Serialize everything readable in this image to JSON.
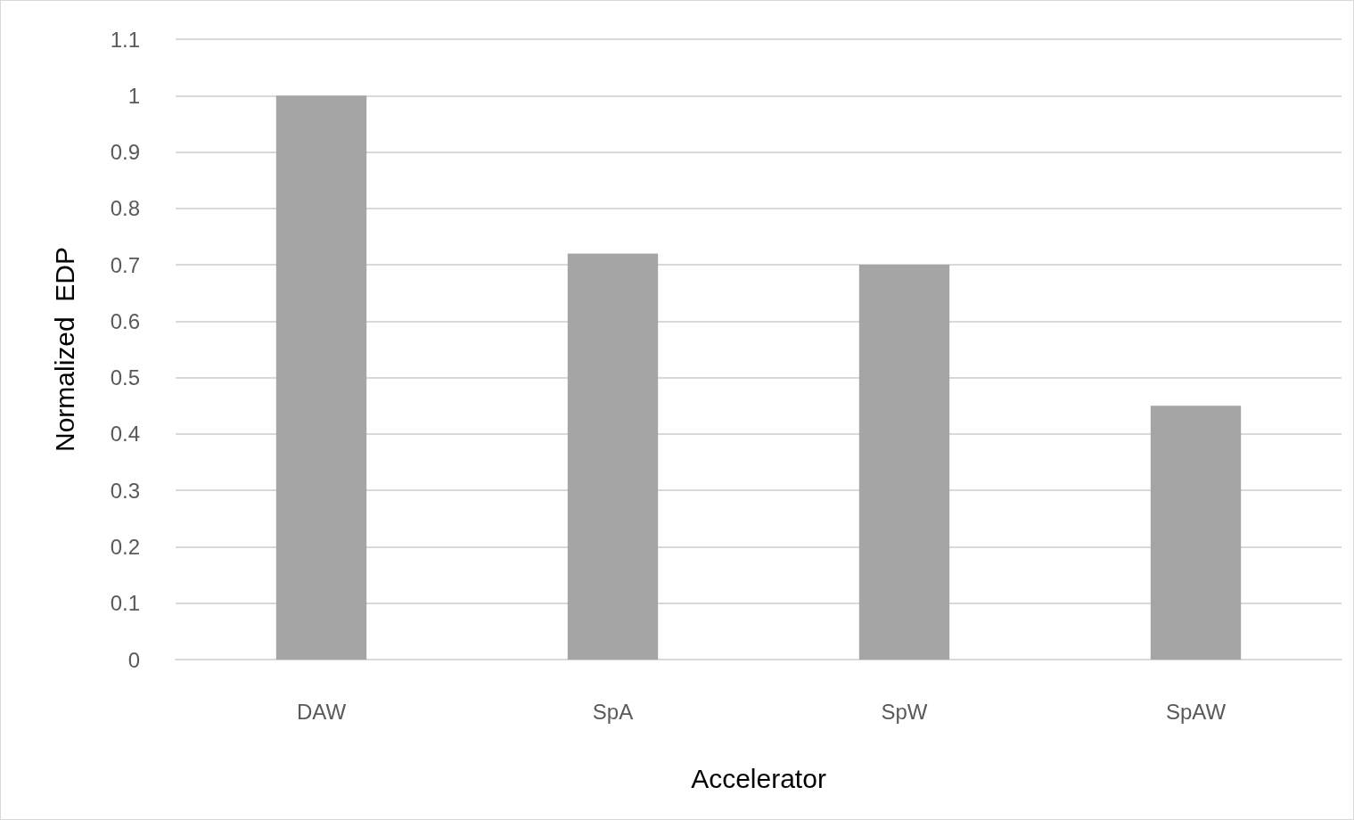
{
  "chart_data": {
    "type": "bar",
    "xlabel": "Accelerator",
    "ylabel": "Normalized  EDP",
    "categories": [
      "DAW",
      "SpA",
      "SpW",
      "SpAW"
    ],
    "values": [
      1,
      0.72,
      0.7,
      0.45
    ],
    "color": "#a5a5a5",
    "ylim": [
      0,
      1.1
    ],
    "yticks": [
      0,
      0.1,
      0.2,
      0.3,
      0.4,
      0.5,
      0.6,
      0.7,
      0.8,
      0.9,
      1,
      1.1
    ],
    "grid": "y"
  }
}
